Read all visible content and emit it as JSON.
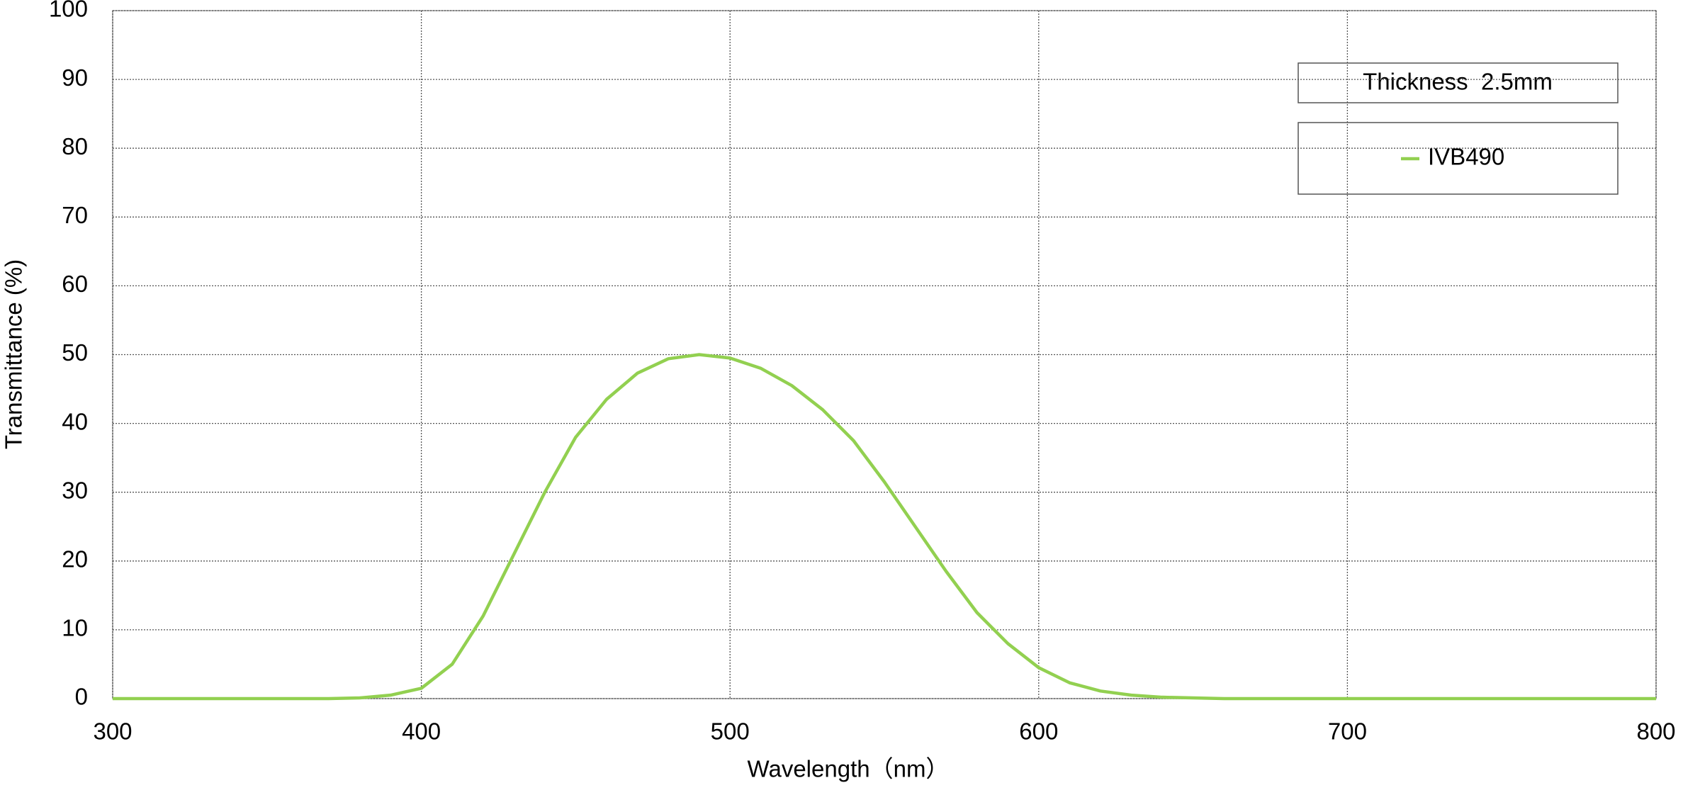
{
  "chart_data": {
    "type": "line",
    "x_label": "Wavelength（nm）",
    "y_label": "Transmittance (%)",
    "annotation": "Thickness  2.5mm",
    "x": [
      300,
      310,
      320,
      330,
      340,
      350,
      360,
      370,
      380,
      390,
      400,
      410,
      420,
      430,
      440,
      450,
      460,
      470,
      480,
      490,
      500,
      510,
      520,
      530,
      540,
      550,
      560,
      570,
      580,
      590,
      600,
      610,
      620,
      630,
      640,
      650,
      660,
      670,
      680,
      690,
      700,
      710,
      720,
      730,
      740,
      750,
      760,
      770,
      780,
      790,
      800
    ],
    "series": [
      {
        "name": "IVB490",
        "color": "#92d050",
        "values": [
          0,
          0,
          0,
          0,
          0,
          0,
          0,
          0,
          0.1,
          0.5,
          1.5,
          5,
          12,
          21,
          30,
          38,
          43.5,
          47.3,
          49.4,
          50,
          49.5,
          48,
          45.5,
          42,
          37.5,
          31.5,
          25,
          18.5,
          12.5,
          8,
          4.5,
          2.3,
          1.1,
          0.5,
          0.2,
          0.1,
          0,
          0,
          0,
          0,
          0,
          0,
          0,
          0,
          0,
          0,
          0,
          0,
          0,
          0,
          0
        ]
      }
    ],
    "xlim": [
      300,
      800
    ],
    "xticks": [
      300,
      400,
      500,
      600,
      700,
      800
    ],
    "ylim": [
      0,
      100
    ],
    "yticks": [
      0,
      10,
      20,
      30,
      40,
      50,
      60,
      70,
      80,
      90,
      100
    ],
    "grid": true
  }
}
